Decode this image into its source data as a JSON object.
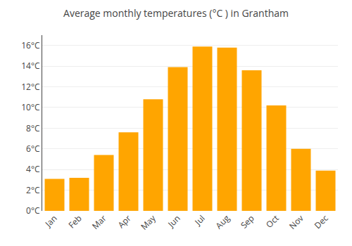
{
  "chart_data": {
    "type": "bar",
    "title": "Average monthly temperatures (°C ) in Grantham",
    "categories": [
      "Jan",
      "Feb",
      "Mar",
      "Apr",
      "May",
      "Jun",
      "Jul",
      "Aug",
      "Sep",
      "Oct",
      "Nov",
      "Dec"
    ],
    "values": [
      3.1,
      3.2,
      5.4,
      7.6,
      10.8,
      13.9,
      15.9,
      15.8,
      13.6,
      10.2,
      6.0,
      3.9
    ],
    "color": "#FFA500",
    "ylim": [
      0,
      17
    ],
    "yticks": [
      {
        "value": 0,
        "label": "0°C"
      },
      {
        "value": 2,
        "label": "2°C"
      },
      {
        "value": 4,
        "label": "4°C"
      },
      {
        "value": 6,
        "label": "6°C"
      },
      {
        "value": 8,
        "label": "8°C"
      },
      {
        "value": 10,
        "label": "10°C"
      },
      {
        "value": 12,
        "label": "12°C"
      },
      {
        "value": 14,
        "label": "14°C"
      },
      {
        "value": 16,
        "label": "16°C"
      }
    ],
    "grid": true
  }
}
